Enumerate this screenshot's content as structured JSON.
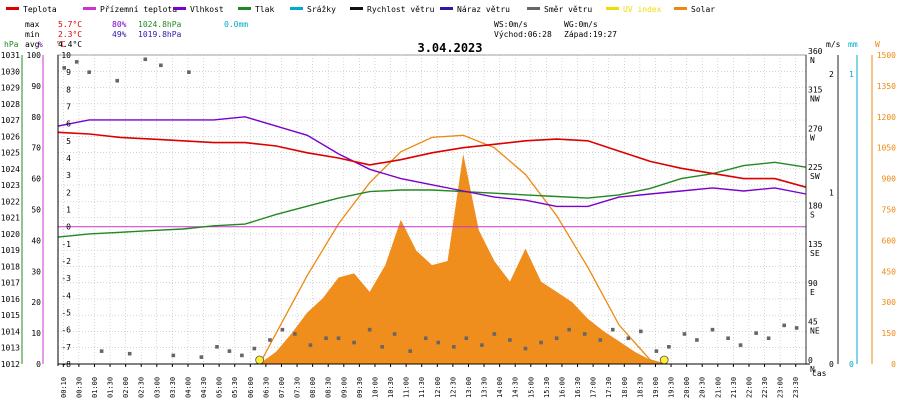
{
  "legend": [
    {
      "label": "Teplota",
      "color": "#dd0000"
    },
    {
      "label": "Přízemní teplota",
      "color": "#cc33cc"
    },
    {
      "label": "Vlhkost",
      "color": "#7a00cc"
    },
    {
      "label": "Tlak",
      "color": "#228822"
    },
    {
      "label": "Srážky",
      "color": "#00aacc"
    },
    {
      "label": "Rychlost větru",
      "color": "#111111"
    },
    {
      "label": "Náraz větru",
      "color": "#2a1aa8"
    },
    {
      "label": "Směr větru",
      "color": "#666666"
    },
    {
      "label": "UV index",
      "color": "#eedd00"
    },
    {
      "label": "Solar",
      "color": "#ee8811"
    }
  ],
  "stats": {
    "max": {
      "label": "max",
      "temp": "5.7°C",
      "hum": "80%",
      "press": "1024.8hPa",
      "rain": "0.0mm"
    },
    "min": {
      "label": "min",
      "temp": "2.3°C",
      "hum": "49%",
      "press": "1019.8hPa"
    },
    "avg": {
      "label": "avg",
      "temp": "4.4°C"
    }
  },
  "wind_info": {
    "ws": "WS:0m/s",
    "wg": "WG:0m/s",
    "sunrise": "Východ:06:28",
    "sunset": "Západ:19:27"
  },
  "date": "3.04.2023",
  "colors": {
    "temp": "#dd0000",
    "ground": "#cc33cc",
    "hum": "#7a00cc",
    "press": "#228822",
    "rain": "#00aacc",
    "gust": "#2a1aa8",
    "dir": "#666666",
    "uv": "#eedd00",
    "solar": "#ee8811"
  },
  "chart_data": {
    "type": "line",
    "title": "3.04.2023",
    "xlabel": "čas",
    "axes": {
      "pressure": {
        "label": "hPa",
        "range": [
          1012,
          1031
        ],
        "ticks": [
          1012,
          1013,
          1014,
          1015,
          1016,
          1017,
          1018,
          1019,
          1020,
          1021,
          1022,
          1023,
          1024,
          1025,
          1026,
          1027,
          1028,
          1029,
          1030,
          1031
        ]
      },
      "humidity": {
        "label": "%",
        "range": [
          0,
          100
        ],
        "ticks": [
          0,
          10,
          20,
          30,
          40,
          50,
          60,
          70,
          80,
          90,
          100
        ]
      },
      "temperature": {
        "label": "°C",
        "range": [
          -8,
          10
        ],
        "ticks": [
          -8,
          -7,
          -6,
          -5,
          -4,
          -3,
          -2,
          -1,
          0,
          1,
          2,
          3,
          4,
          5,
          6,
          7,
          8,
          9,
          10
        ]
      },
      "wind_direction": {
        "range": [
          0,
          360
        ],
        "ticks": [
          {
            "v": 0,
            "d": "N"
          },
          {
            "v": 45,
            "d": "NE"
          },
          {
            "v": 90,
            "d": "E"
          },
          {
            "v": 135,
            "d": "SE"
          },
          {
            "v": 180,
            "d": "S"
          },
          {
            "v": 225,
            "d": "SW"
          },
          {
            "v": 270,
            "d": "W"
          },
          {
            "v": 315,
            "d": "NW"
          },
          {
            "v": 360,
            "d": "N"
          }
        ]
      },
      "wind_speed": {
        "label": "m/s",
        "ticks": [
          0,
          1,
          2
        ]
      },
      "rain": {
        "label": "mm",
        "ticks": [
          0,
          1
        ]
      },
      "solar": {
        "label": "W",
        "range": [
          0,
          1500
        ],
        "ticks": [
          0,
          150,
          300,
          450,
          600,
          750,
          900,
          1050,
          1200,
          1350,
          1500
        ]
      }
    },
    "x_ticks": [
      "00:10",
      "00:30",
      "01:00",
      "01:30",
      "02:00",
      "02:30",
      "03:00",
      "03:30",
      "04:00",
      "04:30",
      "05:00",
      "05:30",
      "06:00",
      "06:30",
      "07:00",
      "07:30",
      "08:00",
      "08:30",
      "09:00",
      "09:30",
      "10:00",
      "10:30",
      "11:00",
      "11:30",
      "12:00",
      "12:30",
      "13:00",
      "13:30",
      "14:00",
      "14:30",
      "15:00",
      "15:30",
      "16:00",
      "16:30",
      "17:00",
      "17:30",
      "18:00",
      "18:30",
      "19:00",
      "19:30",
      "20:00",
      "20:30",
      "21:00",
      "21:30",
      "22:00",
      "22:30",
      "23:00",
      "23:30"
    ],
    "series": [
      {
        "name": "Teplota",
        "axis": "temperature",
        "hours": [
          0,
          1,
          2,
          3,
          4,
          5,
          6,
          7,
          8,
          9,
          10,
          11,
          12,
          13,
          14,
          15,
          16,
          17,
          18,
          19,
          20,
          21,
          22,
          23,
          24
        ],
        "values": [
          5.5,
          5.4,
          5.2,
          5.1,
          5.0,
          4.9,
          4.9,
          4.7,
          4.3,
          4.0,
          3.6,
          3.9,
          4.3,
          4.6,
          4.8,
          5.0,
          5.1,
          5.0,
          4.4,
          3.8,
          3.4,
          3.1,
          2.8,
          2.8,
          2.3
        ]
      },
      {
        "name": "Přízemní teplota",
        "axis": "temperature",
        "hours": [
          0,
          24
        ],
        "values": [
          0,
          0
        ]
      },
      {
        "name": "Vlhkost",
        "axis": "humidity",
        "hours": [
          0,
          1,
          2,
          3,
          4,
          5,
          6,
          7,
          8,
          9,
          10,
          11,
          12,
          13,
          14,
          15,
          16,
          17,
          18,
          19,
          20,
          21,
          22,
          23,
          24
        ],
        "values": [
          77,
          79,
          79,
          79,
          79,
          79,
          80,
          77,
          74,
          68,
          63,
          60,
          58,
          56,
          54,
          53,
          51,
          51,
          54,
          55,
          56,
          57,
          56,
          57,
          55
        ]
      },
      {
        "name": "Tlak",
        "axis": "pressure",
        "hours": [
          0,
          1,
          2,
          3,
          4,
          5,
          6,
          7,
          8,
          9,
          10,
          11,
          12,
          13,
          14,
          15,
          16,
          17,
          18,
          19,
          20,
          21,
          22,
          23,
          24
        ],
        "values": [
          1019.8,
          1020.0,
          1020.1,
          1020.2,
          1020.3,
          1020.5,
          1020.6,
          1021.2,
          1021.7,
          1022.2,
          1022.6,
          1022.7,
          1022.7,
          1022.6,
          1022.5,
          1022.4,
          1022.3,
          1022.2,
          1022.4,
          1022.8,
          1023.4,
          1023.7,
          1024.2,
          1024.4,
          1024.1
        ]
      },
      {
        "name": "Solar",
        "axis": "solar",
        "hours": [
          6.0,
          6.5,
          7.0,
          7.5,
          8.0,
          8.5,
          9.0,
          9.5,
          10.0,
          10.5,
          11.0,
          11.5,
          12.0,
          12.5,
          13.0,
          13.5,
          14.0,
          14.5,
          15.0,
          15.5,
          16.0,
          16.5,
          17.0,
          17.5,
          18.0,
          18.5,
          19.0,
          19.5
        ],
        "values": [
          0,
          5,
          60,
          150,
          250,
          320,
          420,
          440,
          350,
          480,
          700,
          550,
          480,
          500,
          1020,
          650,
          500,
          400,
          560,
          400,
          350,
          300,
          220,
          160,
          110,
          60,
          20,
          0
        ]
      },
      {
        "name": "Solar (theoretical)",
        "axis": "solar",
        "hours": [
          6.47,
          7.0,
          8.0,
          9.0,
          10.0,
          11.0,
          12.0,
          13.0,
          14.0,
          15.0,
          16.0,
          17.0,
          18.0,
          19.0,
          19.45
        ],
        "values": [
          0,
          150,
          430,
          680,
          880,
          1030,
          1100,
          1110,
          1050,
          920,
          720,
          470,
          190,
          20,
          0
        ]
      },
      {
        "name": "Směr větru",
        "axis": "wind_direction",
        "hours": [
          0.2,
          0.6,
          1.0,
          1.4,
          1.9,
          2.3,
          2.8,
          3.3,
          3.7,
          4.2,
          4.6,
          5.1,
          5.5,
          5.9,
          6.3,
          6.8,
          7.2,
          7.6,
          8.1,
          8.6,
          9.0,
          9.5,
          10.0,
          10.4,
          10.8,
          11.3,
          11.8,
          12.2,
          12.7,
          13.1,
          13.6,
          14.0,
          14.5,
          15.0,
          15.5,
          16.0,
          16.4,
          16.9,
          17.4,
          17.8,
          18.3,
          18.7,
          19.2,
          19.6,
          20.1,
          20.5,
          21.0,
          21.5,
          21.9,
          22.4,
          22.8,
          23.3,
          23.7
        ],
        "values": [
          345,
          352,
          340,
          15,
          330,
          12,
          355,
          348,
          10,
          340,
          8,
          20,
          15,
          10,
          18,
          28,
          40,
          35,
          22,
          30,
          30,
          25,
          40,
          20,
          35,
          15,
          30,
          25,
          20,
          30,
          22,
          35,
          28,
          18,
          25,
          30,
          40,
          35,
          28,
          40,
          30,
          38,
          15,
          20,
          35,
          28,
          40,
          30,
          22,
          36,
          30,
          45,
          42
        ]
      }
    ],
    "markers": {
      "sunrise_hour": 6.47,
      "sunset_hour": 19.45
    },
    "grid": true
  }
}
